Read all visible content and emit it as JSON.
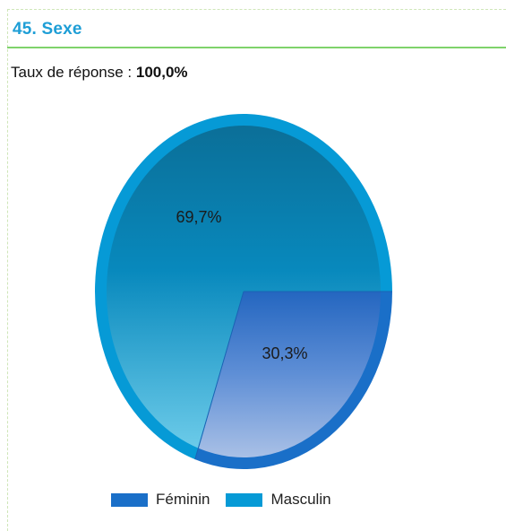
{
  "header": {
    "title": "45. Sexe",
    "rate_label": "Taux de réponse : ",
    "rate_value": "100,0%"
  },
  "colors": {
    "title": "#1e9ed6",
    "rule": "#7fd36b",
    "feminin": "#1a6fc8",
    "masculin": "#069ad6"
  },
  "chart_data": {
    "type": "pie",
    "title": "45. Sexe",
    "slices": [
      {
        "label": "Féminin",
        "value": 30.3,
        "display": "30,3%",
        "color": "#1a6fc8"
      },
      {
        "label": "Masculin",
        "value": 69.7,
        "display": "69,7%",
        "color": "#069ad6"
      }
    ],
    "legend_position": "bottom"
  }
}
